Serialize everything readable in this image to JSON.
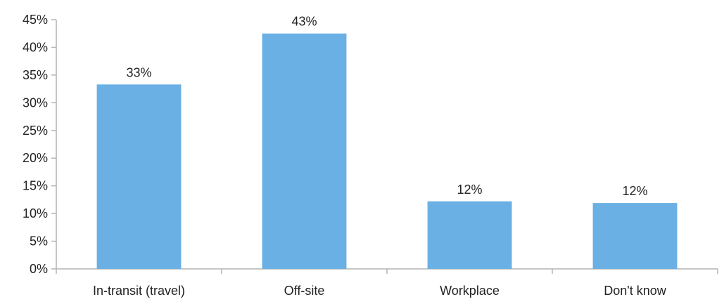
{
  "chart_data": {
    "type": "bar",
    "title": "",
    "xlabel": "",
    "ylabel": "",
    "categories": [
      "In-transit (travel)",
      "Off-site",
      "Workplace",
      "Don't know"
    ],
    "values": [
      33.3,
      42.5,
      12.2,
      11.9
    ],
    "data_labels": [
      "33%",
      "43%",
      "12%",
      "12%"
    ],
    "ylim": [
      0,
      45
    ],
    "y_ticks": [
      0,
      5,
      10,
      15,
      20,
      25,
      30,
      35,
      40,
      45
    ],
    "y_tick_labels": [
      "0%",
      "5%",
      "10%",
      "15%",
      "20%",
      "25%",
      "30%",
      "35%",
      "40%",
      "45%"
    ],
    "grid": false,
    "legend": "none",
    "colors": {
      "bar": "#6ab0e4",
      "axis": "#b4b4b4",
      "text": "#222222"
    }
  }
}
